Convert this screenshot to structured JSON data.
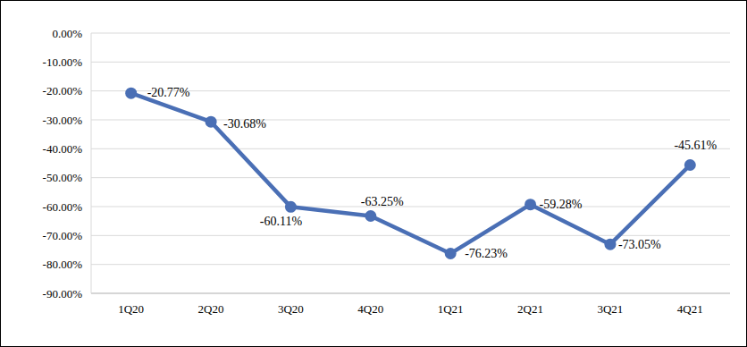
{
  "chart_data": {
    "type": "line",
    "categories": [
      "1Q20",
      "2Q20",
      "3Q20",
      "4Q20",
      "1Q21",
      "2Q21",
      "3Q21",
      "4Q21"
    ],
    "values": [
      -20.77,
      -30.68,
      -60.11,
      -63.25,
      -76.23,
      -59.28,
      -73.05,
      -45.61
    ],
    "value_labels": [
      "-20.77%",
      "-30.68%",
      "-60.11%",
      "-63.25%",
      "-76.23%",
      "-59.28%",
      "-73.05%",
      "-45.61%"
    ],
    "color": "#4a6fb5",
    "marker": "circle",
    "data_labels": true,
    "ylim": [
      -90,
      0
    ],
    "yticks": [
      {
        "value": 0,
        "label": "0.00%"
      },
      {
        "value": -10,
        "label": "-10.00%"
      },
      {
        "value": -20,
        "label": "-20.00%"
      },
      {
        "value": -30,
        "label": "-30.00%"
      },
      {
        "value": -40,
        "label": "-40.00%"
      },
      {
        "value": -50,
        "label": "-50.00%"
      },
      {
        "value": -60,
        "label": "-60.00%"
      },
      {
        "value": -70,
        "label": "-70.00%"
      },
      {
        "value": -80,
        "label": "-80.00%"
      },
      {
        "value": -90,
        "label": "-90.00%"
      }
    ],
    "grid": true
  }
}
